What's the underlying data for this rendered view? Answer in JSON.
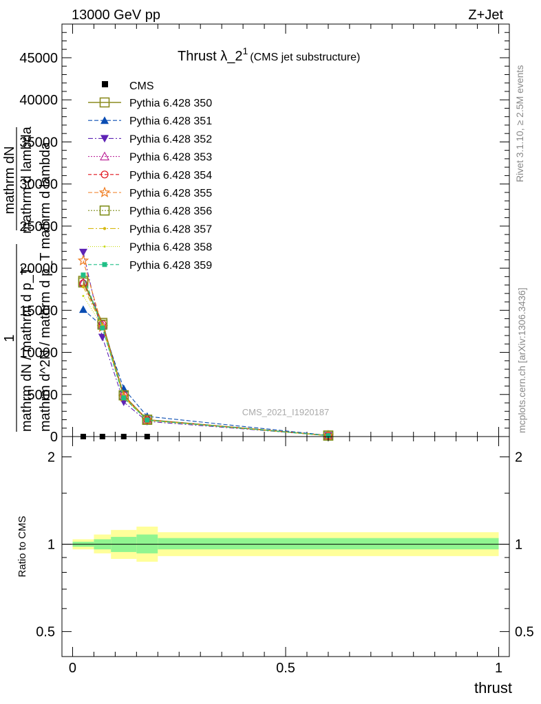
{
  "header": {
    "left": "13000 GeV pp",
    "right": "Z+Jet"
  },
  "side_labels": {
    "rivet": "Rivet 3.1.10, ≥ 2.5M events",
    "mcplots": "mcplots.cern.ch [arXiv:1306.3436]"
  },
  "chart_data": [
    {
      "type": "line",
      "title": "Thrust λ_2",
      "title_sup": "1",
      "title_suffix": "(CMS jet substructure)",
      "watermark": "CMS_2021_I1920187",
      "xlabel": "thrust",
      "ylabel_lines": [
        "1",
        "mathrm dN / mathrm d p_T",
        "mathrm d^2N / mathrm d p_T mathrm d lambda",
        "mathrm dN",
        "mathrm d lambda"
      ],
      "xlim": [
        -0.025,
        1.025
      ],
      "ylim": [
        0,
        49000
      ],
      "x_ticks": [
        0,
        0.5,
        1
      ],
      "x_tick_labels": [
        "0",
        "0.5",
        "1"
      ],
      "y_ticks": [
        0,
        5000,
        10000,
        15000,
        20000,
        25000,
        30000,
        35000,
        40000,
        45000
      ],
      "y_tick_labels": [
        "0",
        "5000",
        "10000",
        "15000",
        "20000",
        "25000",
        "30000",
        "35000",
        "40000",
        "45000"
      ],
      "x": [
        0.025,
        0.07,
        0.12,
        0.175,
        0.6
      ],
      "cms": {
        "name": "CMS",
        "x": [
          0.025,
          0.07,
          0.12,
          0.175
        ],
        "values": [
          0,
          0,
          0,
          0
        ]
      },
      "legend_position": "top-left",
      "series": [
        {
          "name": "Pythia 6.428 350",
          "color": "#8b8b1f",
          "marker": "square-open",
          "dash": "",
          "values": [
            18500,
            13500,
            4900,
            2000,
            120
          ]
        },
        {
          "name": "Pythia 6.428 351",
          "color": "#0a4db3",
          "marker": "triangle-up",
          "dash": "6,3",
          "values": [
            15100,
            13100,
            5700,
            2400,
            140
          ]
        },
        {
          "name": "Pythia 6.428 352",
          "color": "#5e23b5",
          "marker": "triangle-down",
          "dash": "7,3,2,3",
          "values": [
            21900,
            11800,
            4100,
            1800,
            120
          ]
        },
        {
          "name": "Pythia 6.428 353",
          "color": "#bd2a9a",
          "marker": "triangle-open",
          "dash": "2,2",
          "values": [
            18300,
            13300,
            4800,
            1950,
            110
          ]
        },
        {
          "name": "Pythia 6.428 354",
          "color": "#e0101a",
          "marker": "circle-open",
          "dash": "5,3",
          "values": [
            18200,
            13400,
            4900,
            2000,
            115
          ]
        },
        {
          "name": "Pythia 6.428 355",
          "color": "#ef7a1c",
          "marker": "star-open",
          "dash": "6,3",
          "values": [
            20900,
            13000,
            4700,
            1950,
            110
          ]
        },
        {
          "name": "Pythia 6.428 356",
          "color": "#7f8e1a",
          "marker": "square-open",
          "dash": "2,2",
          "values": [
            18300,
            13300,
            4900,
            2000,
            115
          ]
        },
        {
          "name": "Pythia 6.428 357",
          "color": "#d6b80f",
          "marker": "dot",
          "dash": "8,3,2,3",
          "values": [
            17800,
            13200,
            4800,
            1950,
            110
          ]
        },
        {
          "name": "Pythia 6.428 358",
          "color": "#c6d90f",
          "marker": "dot-small",
          "dash": "1,2",
          "values": [
            16700,
            13100,
            4600,
            1900,
            105
          ]
        },
        {
          "name": "Pythia 6.428 359",
          "color": "#1fbf86",
          "marker": "square-filled",
          "dash": "5,3",
          "values": [
            19200,
            12900,
            4600,
            1950,
            110
          ]
        }
      ]
    },
    {
      "type": "line",
      "ylabel": "Ratio to CMS",
      "xlim": [
        -0.025,
        1.025
      ],
      "ylim": [
        0.41,
        2.35
      ],
      "y_scale": "log",
      "y_ticks": [
        0.5,
        1,
        2
      ],
      "y_tick_labels": [
        "0.5",
        "1",
        "2"
      ],
      "reference_value": 1,
      "bands": [
        {
          "x0": 0.0,
          "x1": 0.05,
          "inner": [
            0.98,
            1.02
          ],
          "outer": [
            0.96,
            1.04
          ]
        },
        {
          "x0": 0.05,
          "x1": 0.09,
          "inner": [
            0.96,
            1.04
          ],
          "outer": [
            0.93,
            1.08
          ]
        },
        {
          "x0": 0.09,
          "x1": 0.15,
          "inner": [
            0.94,
            1.06
          ],
          "outer": [
            0.89,
            1.12
          ]
        },
        {
          "x0": 0.15,
          "x1": 0.2,
          "inner": [
            0.93,
            1.08
          ],
          "outer": [
            0.87,
            1.15
          ]
        },
        {
          "x0": 0.2,
          "x1": 1.0,
          "inner": [
            0.96,
            1.05
          ],
          "outer": [
            0.91,
            1.1
          ]
        }
      ],
      "band_colors": {
        "inner": "#90f590",
        "outer": "#ffff9a"
      }
    }
  ]
}
